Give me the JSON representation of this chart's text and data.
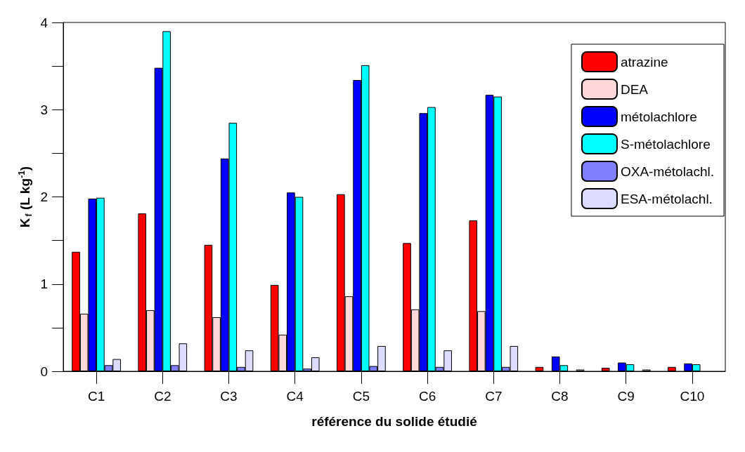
{
  "chart_data": {
    "type": "bar",
    "xlabel": "référence du solide étudié",
    "ylabel": "K$_{f}$ (L kg$^{-1}$)",
    "categories": [
      "C1",
      "C2",
      "C3",
      "C4",
      "C5",
      "C6",
      "C7",
      "C8",
      "C9",
      "C10"
    ],
    "series": [
      {
        "name": "atrazine",
        "color": "#ff0000",
        "values": [
          1.37,
          1.81,
          1.45,
          0.99,
          2.03,
          1.47,
          1.73,
          0.05,
          0.04,
          0.05
        ]
      },
      {
        "name": "DEA",
        "color": "#ffd9d9",
        "values": [
          0.66,
          0.7,
          0.62,
          0.42,
          0.86,
          0.71,
          0.69,
          null,
          null,
          null
        ]
      },
      {
        "name": "métolachlore",
        "color": "#0000ff",
        "values": [
          1.98,
          3.48,
          2.44,
          2.05,
          3.34,
          2.96,
          3.17,
          0.17,
          0.1,
          0.09
        ]
      },
      {
        "name": "S-métolachlore",
        "color": "#00ffff",
        "values": [
          1.99,
          3.9,
          2.85,
          2.0,
          3.51,
          3.03,
          3.15,
          0.07,
          0.08,
          0.08
        ]
      },
      {
        "name": "OXA-métolachl.",
        "color": "#8080ff",
        "values": [
          0.07,
          0.07,
          0.05,
          0.03,
          0.06,
          0.05,
          0.05,
          null,
          null,
          null
        ]
      },
      {
        "name": "ESA-métolachl.",
        "color": "#dcdcff",
        "values": [
          0.14,
          0.32,
          0.24,
          0.16,
          0.29,
          0.24,
          0.29,
          0.02,
          0.02,
          null
        ]
      }
    ],
    "ylim": [
      0,
      4
    ],
    "yticks": [
      0,
      {
        "value": 0.5,
        "label": null
      },
      1,
      {
        "value": 1.5,
        "label": null
      },
      2,
      {
        "value": 2.5,
        "label": null
      },
      3,
      {
        "value": 3.5,
        "label": null
      },
      4
    ],
    "grid": false,
    "legend": "top right"
  }
}
